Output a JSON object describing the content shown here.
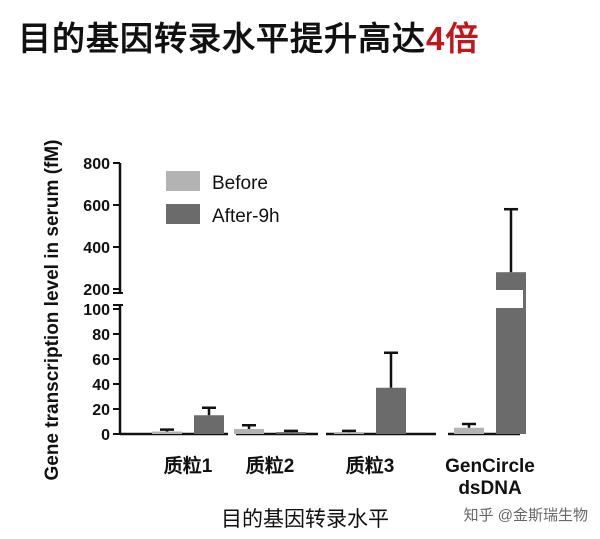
{
  "page": {
    "title_main": "目的基因转录水平提升高达",
    "title_highlight": "4倍",
    "watermark": "知乎 @金斯瑞生物"
  },
  "colors": {
    "before": "#b3b3b3",
    "after": "#6b6b6b",
    "highlight": "#c0161c",
    "axis": "#111111"
  },
  "chart_data": {
    "type": "bar",
    "categories": [
      "质粒1",
      "质粒2",
      "质粒3",
      "GenCircle dsDNA"
    ],
    "category_lines": [
      [
        "质粒1"
      ],
      [
        "质粒2"
      ],
      [
        "质粒3"
      ],
      [
        "GenCircle",
        "dsDNA"
      ]
    ],
    "highlight_category_index": 3,
    "series": [
      {
        "name": "Before",
        "values": [
          2,
          4,
          1.5,
          5
        ],
        "errors": [
          1.5,
          3,
          1,
          3
        ]
      },
      {
        "name": "After-9h",
        "values": [
          15,
          1.5,
          37,
          280
        ],
        "errors": [
          6,
          1,
          28,
          300
        ]
      }
    ],
    "xlabel": "目的基因转录水平",
    "ylabel": "Gene transcription level in serum (fM)",
    "axis_break": {
      "lower_ticks": [
        0,
        20,
        40,
        60,
        80,
        100
      ],
      "upper_ticks": [
        200,
        400,
        600,
        800
      ],
      "lower_range": [
        0,
        100
      ],
      "upper_range": [
        200,
        800
      ]
    },
    "legend_position": "top-left",
    "grid": false
  }
}
